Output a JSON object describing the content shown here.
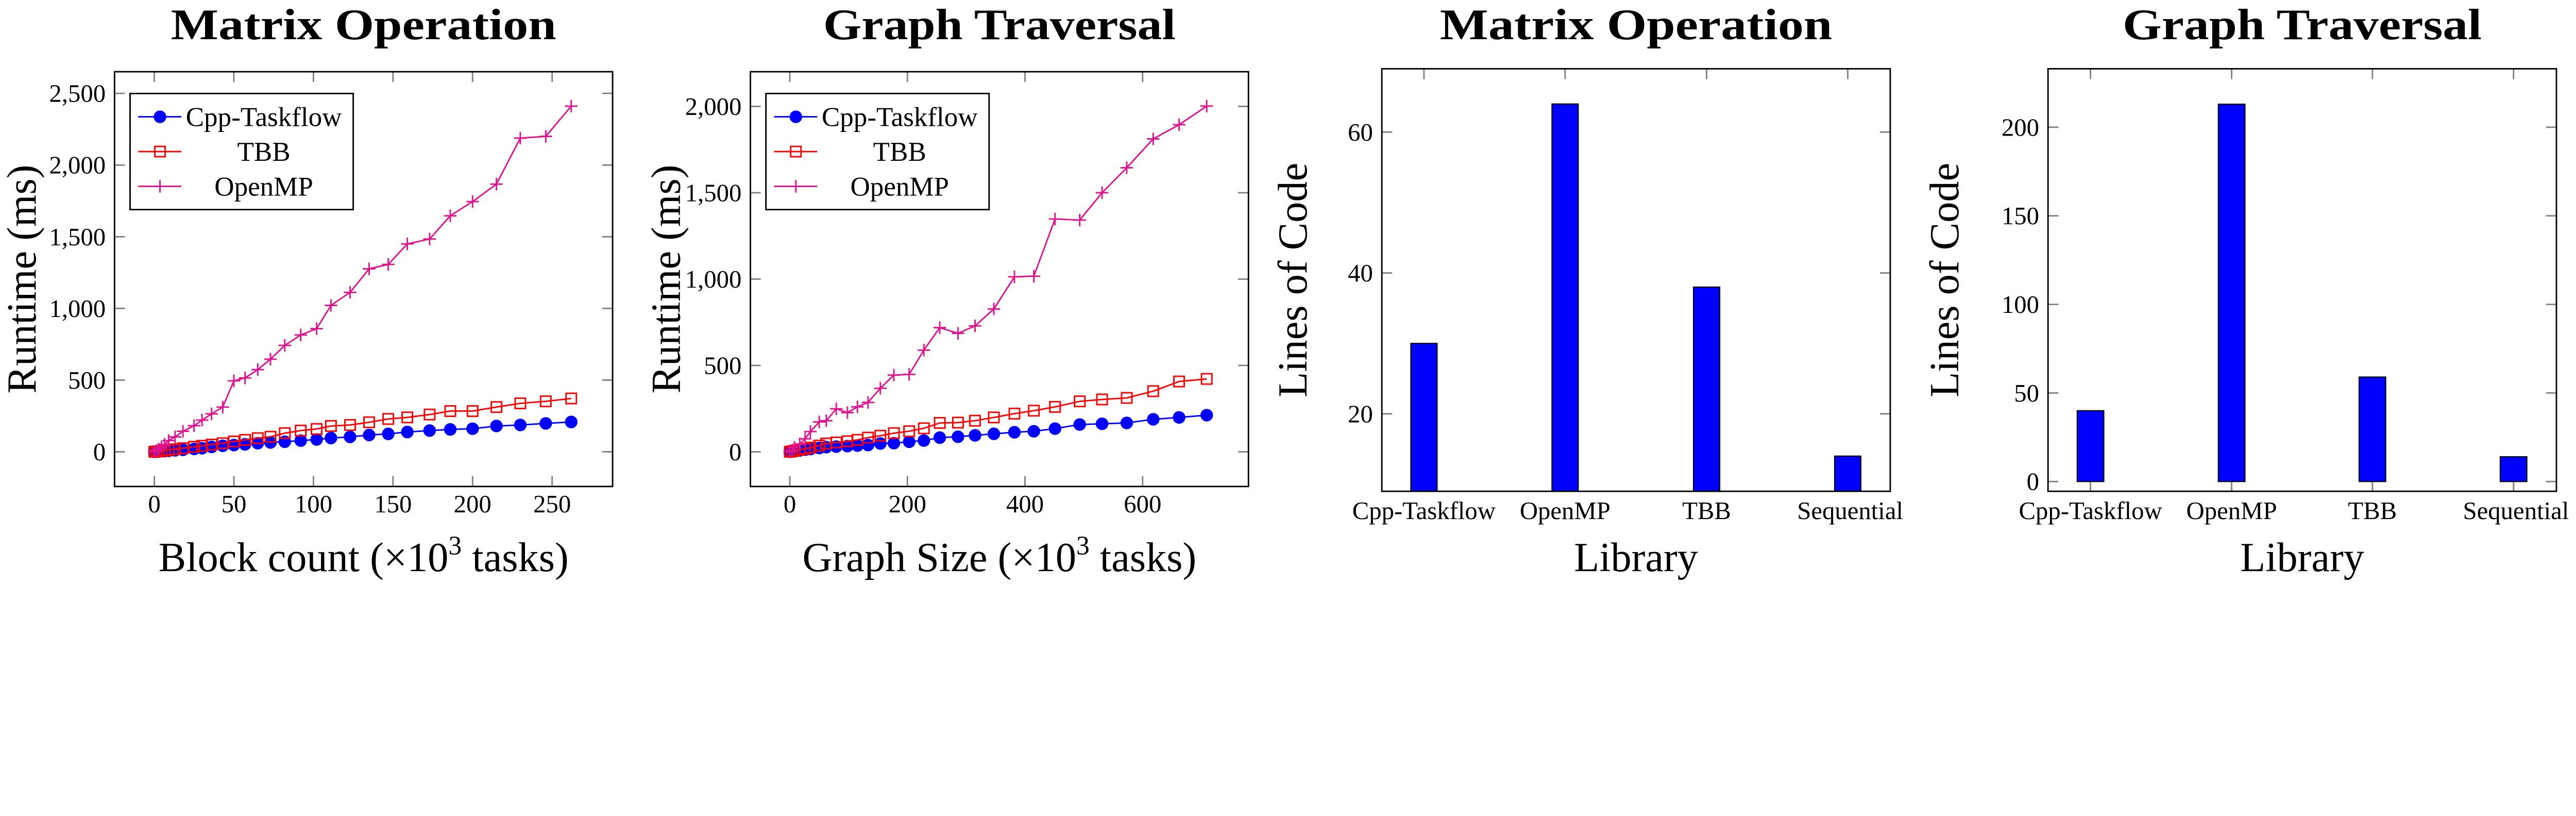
{
  "colors": {
    "cpp": "#0000ff",
    "tbb": "#ff0000",
    "openmp": "#e0138c",
    "bar": "#0000ff"
  },
  "chart_data": [
    {
      "type": "line",
      "title": "Matrix Operation",
      "xlabel": {
        "main": "Block count (×10",
        "sup": "3",
        "tail": " tasks)"
      },
      "ylabel": "Runtime (ms)",
      "xlim": [
        -25,
        288
      ],
      "ylim": [
        -242,
        2651
      ],
      "xticks": [
        {
          "v": 0,
          "label": "0"
        },
        {
          "v": 50,
          "label": "50"
        },
        {
          "v": 100,
          "label": "100"
        },
        {
          "v": 150,
          "label": "150"
        },
        {
          "v": 200,
          "label": "200"
        },
        {
          "v": 250,
          "label": "250"
        }
      ],
      "yticks": [
        {
          "v": 0,
          "label": "0"
        },
        {
          "v": 500,
          "label": "500"
        },
        {
          "v": 1000,
          "label": "1,000"
        },
        {
          "v": 1500,
          "label": "1,500"
        },
        {
          "v": 2000,
          "label": "2,000"
        },
        {
          "v": 2500,
          "label": "2,500"
        }
      ],
      "legend": "top-left",
      "grid": false,
      "x": [
        0,
        1.3,
        2.6,
        4.5,
        6.5,
        9,
        13,
        18,
        25,
        30,
        36,
        43,
        50,
        57,
        65,
        73,
        82,
        92,
        102,
        111,
        123,
        135,
        147,
        159,
        173,
        186,
        200,
        215,
        230,
        246,
        262
      ],
      "series": [
        {
          "name": "Cpp-Taskflow",
          "marker": "circle",
          "color": "#0000ff",
          "values": [
            0,
            1,
            2,
            4,
            5,
            7,
            10,
            14,
            20,
            25,
            34,
            42,
            47,
            52,
            60,
            65,
            70,
            78,
            86,
            96,
            104,
            117,
            125,
            138,
            148,
            156,
            161,
            180,
            187,
            198,
            208
          ]
        },
        {
          "name": "TBB",
          "marker": "square",
          "color": "#ff0000",
          "values": [
            0,
            2,
            4,
            6,
            9,
            13,
            18,
            25,
            35,
            42,
            50,
            60,
            72,
            83,
            95,
            105,
            130,
            148,
            159,
            180,
            187,
            206,
            229,
            240,
            260,
            284,
            284,
            312,
            338,
            352,
            372
          ]
        },
        {
          "name": "OpenMP",
          "marker": "plus",
          "color": "#e0138c",
          "values": [
            0,
            8,
            18,
            34,
            52,
            78,
            104,
            143,
            182,
            221,
            265,
            312,
            495,
            515,
            573,
            646,
            742,
            815,
            859,
            1021,
            1112,
            1276,
            1307,
            1450,
            1484,
            1646,
            1745,
            1867,
            2188,
            2200,
            2411
          ]
        }
      ]
    },
    {
      "type": "line",
      "title": "Graph Traversal",
      "xlabel": {
        "main": "Graph Size (×10",
        "sup": "3",
        "tail": " tasks)"
      },
      "ylabel": "Runtime (ms)",
      "xlim": [
        -67,
        780
      ],
      "ylim": [
        -201,
        2201
      ],
      "xticks": [
        {
          "v": 0,
          "label": "0"
        },
        {
          "v": 200,
          "label": "200"
        },
        {
          "v": 400,
          "label": "400"
        },
        {
          "v": 600,
          "label": "600"
        }
      ],
      "yticks": [
        {
          "v": 0,
          "label": "0"
        },
        {
          "v": 500,
          "label": "500"
        },
        {
          "v": 1000,
          "label": "1,000"
        },
        {
          "v": 1500,
          "label": "1,500"
        },
        {
          "v": 2000,
          "label": "2,000"
        }
      ],
      "legend": "top-left",
      "grid": false,
      "x": [
        0,
        4,
        8,
        17,
        26,
        35,
        50,
        62,
        79,
        98,
        115,
        133,
        154,
        177,
        203,
        228,
        255,
        286,
        315,
        347,
        382,
        415,
        451,
        493,
        531,
        573,
        618,
        662,
        709
      ],
      "series": [
        {
          "name": "Cpp-Taskflow",
          "marker": "circle",
          "color": "#0000ff",
          "values": [
            0,
            2,
            4,
            8,
            12,
            16,
            22,
            27,
            30,
            33,
            36,
            39,
            48,
            50,
            58,
            65,
            82,
            87,
            95,
            104,
            113,
            119,
            134,
            158,
            162,
            167,
            188,
            199,
            212
          ]
        },
        {
          "name": "TBB",
          "marker": "square",
          "color": "#ff0000",
          "values": [
            0,
            3,
            6,
            12,
            18,
            24,
            36,
            48,
            54,
            61,
            69,
            82,
            93,
            108,
            119,
            136,
            167,
            169,
            180,
            199,
            221,
            238,
            260,
            292,
            303,
            312,
            351,
            407,
            422
          ]
        },
        {
          "name": "OpenMP",
          "marker": "plus",
          "color": "#e0138c",
          "values": [
            0,
            10,
            25,
            45,
            75,
            117,
            173,
            180,
            249,
            227,
            260,
            286,
            368,
            444,
            448,
            589,
            719,
            686,
            729,
            827,
            1013,
            1017,
            1348,
            1342,
            1500,
            1645,
            1812,
            1894,
            2002
          ]
        }
      ]
    },
    {
      "type": "bar",
      "title": "Matrix Operation",
      "xlabel": {
        "main": "Library"
      },
      "ylabel": "Lines of Code",
      "ylim": [
        9,
        69
      ],
      "categories": [
        "Cpp-Taskflow",
        "OpenMP",
        "TBB",
        "Sequential"
      ],
      "values": [
        30,
        64,
        38,
        14
      ],
      "yticks": [
        {
          "v": 20,
          "label": "20"
        },
        {
          "v": 40,
          "label": "40"
        },
        {
          "v": 60,
          "label": "60"
        }
      ],
      "grid": false
    },
    {
      "type": "bar",
      "title": "Graph Traversal",
      "xlabel": {
        "main": "Library"
      },
      "ylabel": "Lines of Code",
      "ylim": [
        -5.5,
        233
      ],
      "categories": [
        "Cpp-Taskflow",
        "OpenMP",
        "TBB",
        "Sequential"
      ],
      "values": [
        40,
        213,
        59,
        14
      ],
      "yticks": [
        {
          "v": 0,
          "label": "0"
        },
        {
          "v": 50,
          "label": "50"
        },
        {
          "v": 100,
          "label": "100"
        },
        {
          "v": 150,
          "label": "150"
        },
        {
          "v": 200,
          "label": "200"
        }
      ],
      "grid": false
    }
  ]
}
